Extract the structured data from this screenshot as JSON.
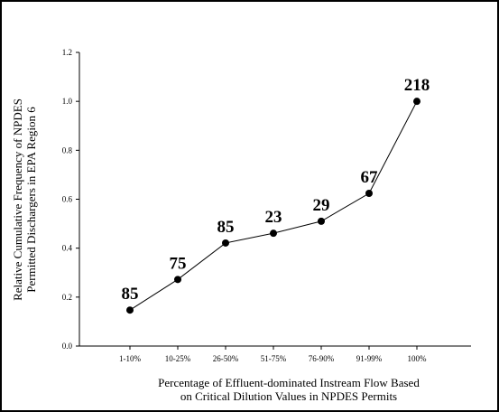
{
  "chart_data": {
    "type": "line",
    "categories": [
      "1-10%",
      "10-25%",
      "26-50%",
      "51-75%",
      "76-90%",
      "91-99%",
      "100%"
    ],
    "values": [
      0.147,
      0.272,
      0.421,
      0.461,
      0.51,
      0.624,
      1.0
    ],
    "data_labels": [
      "85",
      "75",
      "85",
      "23",
      "29",
      "67",
      "218"
    ],
    "title": "",
    "xlabel_lines": [
      "Percentage of Effluent-dominated Instream Flow Based",
      "on Critical Dilution Values in NPDES Permits"
    ],
    "ylabel_lines": [
      "Relative Cumulative Frequency of NPDES",
      "Permitted Dischargers in EPA Region 6"
    ],
    "ylim": [
      0,
      1.2
    ],
    "yticks": [
      "0.0",
      "0.2",
      "0.4",
      "0.6",
      "0.8",
      "1.0",
      "1.2"
    ],
    "grid": false,
    "legend": "none",
    "line_color": "#000000",
    "marker_color": "#000000"
  }
}
